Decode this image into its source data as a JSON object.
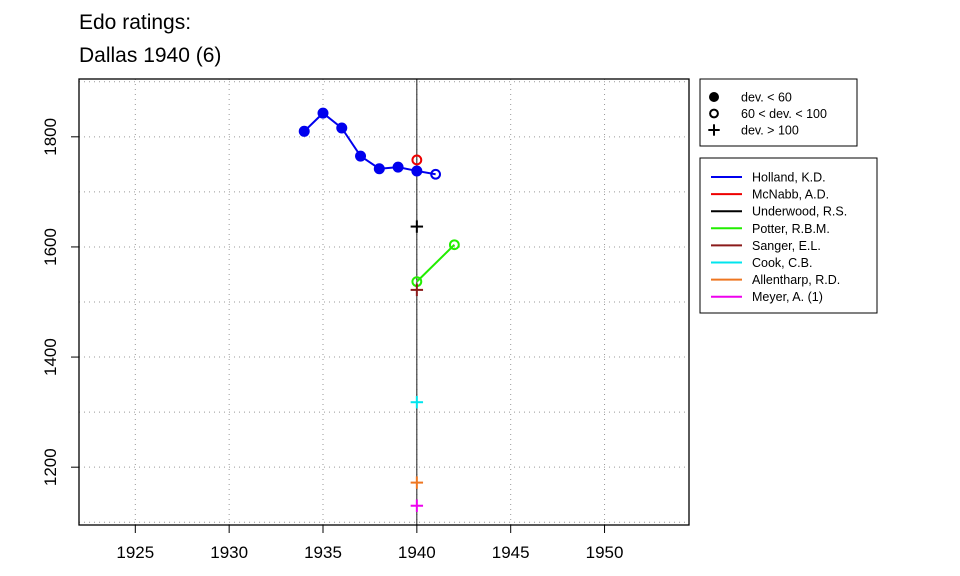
{
  "chart_data": {
    "type": "line",
    "title_lines": [
      "Edo ratings:",
      "Dallas 1940 (6)"
    ],
    "xlabel": "",
    "ylabel": "",
    "xlim": [
      1922,
      1954.5
    ],
    "ylim": [
      1095,
      1905
    ],
    "x_ticks": [
      1925,
      1930,
      1935,
      1940,
      1945,
      1950
    ],
    "y_ticks": [
      1200,
      1400,
      1600,
      1800
    ],
    "grid": true,
    "reference_x": 1940,
    "marker_legend": [
      {
        "marker": "filled-circle",
        "label": "dev. < 60"
      },
      {
        "marker": "open-circle",
        "label": "60 < dev. < 100"
      },
      {
        "marker": "plus",
        "label": "dev. > 100"
      }
    ],
    "series": [
      {
        "name": "Holland, K.D.",
        "color": "#0000ee",
        "points": [
          {
            "x": 1934,
            "y": 1810,
            "marker": "filled-circle"
          },
          {
            "x": 1935,
            "y": 1843,
            "marker": "filled-circle"
          },
          {
            "x": 1936,
            "y": 1816,
            "marker": "filled-circle"
          },
          {
            "x": 1937,
            "y": 1765,
            "marker": "filled-circle"
          },
          {
            "x": 1938,
            "y": 1742,
            "marker": "filled-circle"
          },
          {
            "x": 1939,
            "y": 1745,
            "marker": "filled-circle"
          },
          {
            "x": 1940,
            "y": 1738,
            "marker": "filled-circle"
          },
          {
            "x": 1941,
            "y": 1732,
            "marker": "open-circle"
          }
        ]
      },
      {
        "name": "McNabb, A.D.",
        "color": "#ee0000",
        "points": [
          {
            "x": 1940,
            "y": 1758,
            "marker": "open-circle"
          }
        ]
      },
      {
        "name": "Underwood, R.S.",
        "color": "#000000",
        "points": [
          {
            "x": 1940,
            "y": 1637,
            "marker": "plus"
          }
        ]
      },
      {
        "name": "Potter, R.B.M.",
        "color": "#22ee00",
        "points": [
          {
            "x": 1940,
            "y": 1537,
            "marker": "open-circle"
          },
          {
            "x": 1942,
            "y": 1604,
            "marker": "open-circle"
          }
        ]
      },
      {
        "name": "Sanger, E.L.",
        "color": "#8b1a1a",
        "points": [
          {
            "x": 1940,
            "y": 1522,
            "marker": "plus"
          }
        ]
      },
      {
        "name": "Cook, C.B.",
        "color": "#00e5ee",
        "points": [
          {
            "x": 1940,
            "y": 1318,
            "marker": "plus"
          }
        ]
      },
      {
        "name": "Allentharp, R.D.",
        "color": "#ee7621",
        "points": [
          {
            "x": 1940,
            "y": 1172,
            "marker": "plus"
          }
        ]
      },
      {
        "name": "Meyer, A. (1)",
        "color": "#ee00ee",
        "points": [
          {
            "x": 1940,
            "y": 1130,
            "marker": "plus"
          }
        ]
      }
    ]
  }
}
